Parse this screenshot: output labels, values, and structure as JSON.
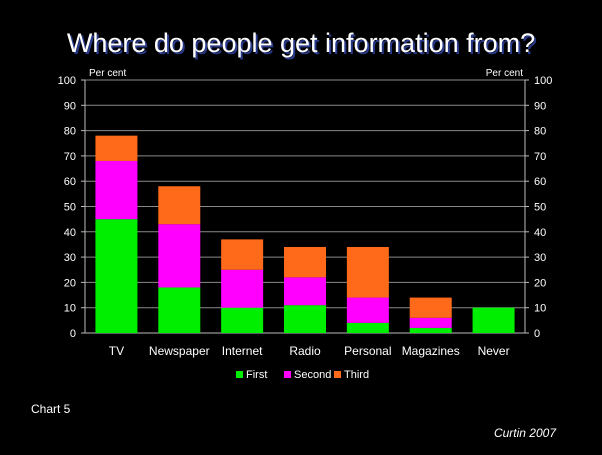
{
  "slide": {
    "title": "Where do people get information from?",
    "chart_label": "Chart 5",
    "source": "Curtin 2007"
  },
  "chart_data": {
    "type": "bar",
    "stacked": true,
    "categories": [
      "TV",
      "Newspaper",
      "Internet",
      "Radio",
      "Personal",
      "Magazines",
      "Never"
    ],
    "series": [
      {
        "name": "First",
        "color": "#00ee00",
        "values": [
          45,
          18,
          10,
          11,
          4,
          2,
          10
        ]
      },
      {
        "name": "Second",
        "color": "#ff00ff",
        "values": [
          23,
          25,
          15,
          11,
          10,
          4,
          0
        ]
      },
      {
        "name": "Third",
        "color": "#ff6a1a",
        "values": [
          10,
          15,
          12,
          12,
          20,
          8,
          0
        ]
      }
    ],
    "ylabel_left": "Per cent",
    "ylabel_right": "Per cent",
    "ylim": [
      0,
      100
    ],
    "yticks": [
      0,
      10,
      20,
      30,
      40,
      50,
      60,
      70,
      80,
      90,
      100
    ],
    "grid": true,
    "legend": "bottom"
  }
}
